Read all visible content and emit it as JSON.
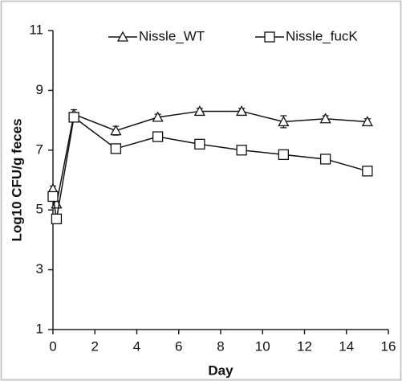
{
  "chart_data": {
    "type": "line",
    "x_label": "Day",
    "y_label": "Log10 CFU/g feces",
    "x": [
      0,
      0.17,
      1,
      3,
      5,
      7,
      9,
      11,
      13,
      15
    ],
    "series": [
      {
        "name": "Nissle_WT",
        "color": "#111111",
        "marker": "triangle",
        "values": [
          5.7,
          5.2,
          8.2,
          7.65,
          8.1,
          8.3,
          8.3,
          7.95,
          8.05,
          7.95
        ],
        "errors": [
          0.1,
          0.1,
          0.15,
          0.15,
          0.1,
          0.1,
          0.1,
          0.2,
          0.1,
          0.1
        ]
      },
      {
        "name": "Nissle_fucK",
        "color": "#111111",
        "marker": "square",
        "values": [
          5.45,
          4.7,
          8.1,
          7.05,
          7.45,
          7.2,
          7.0,
          6.85,
          6.7,
          6.3
        ],
        "errors": [
          0.1,
          0.1,
          0.1,
          0.1,
          0.15,
          0.1,
          0.1,
          0.1,
          0.1,
          0.15
        ]
      }
    ],
    "xlim": [
      0,
      16
    ],
    "xticks": [
      0,
      2,
      4,
      6,
      8,
      10,
      12,
      14,
      16
    ],
    "ylim": [
      1,
      11
    ],
    "yticks": [
      1,
      3,
      5,
      7,
      9,
      11
    ],
    "grid": false,
    "legend": "top"
  }
}
